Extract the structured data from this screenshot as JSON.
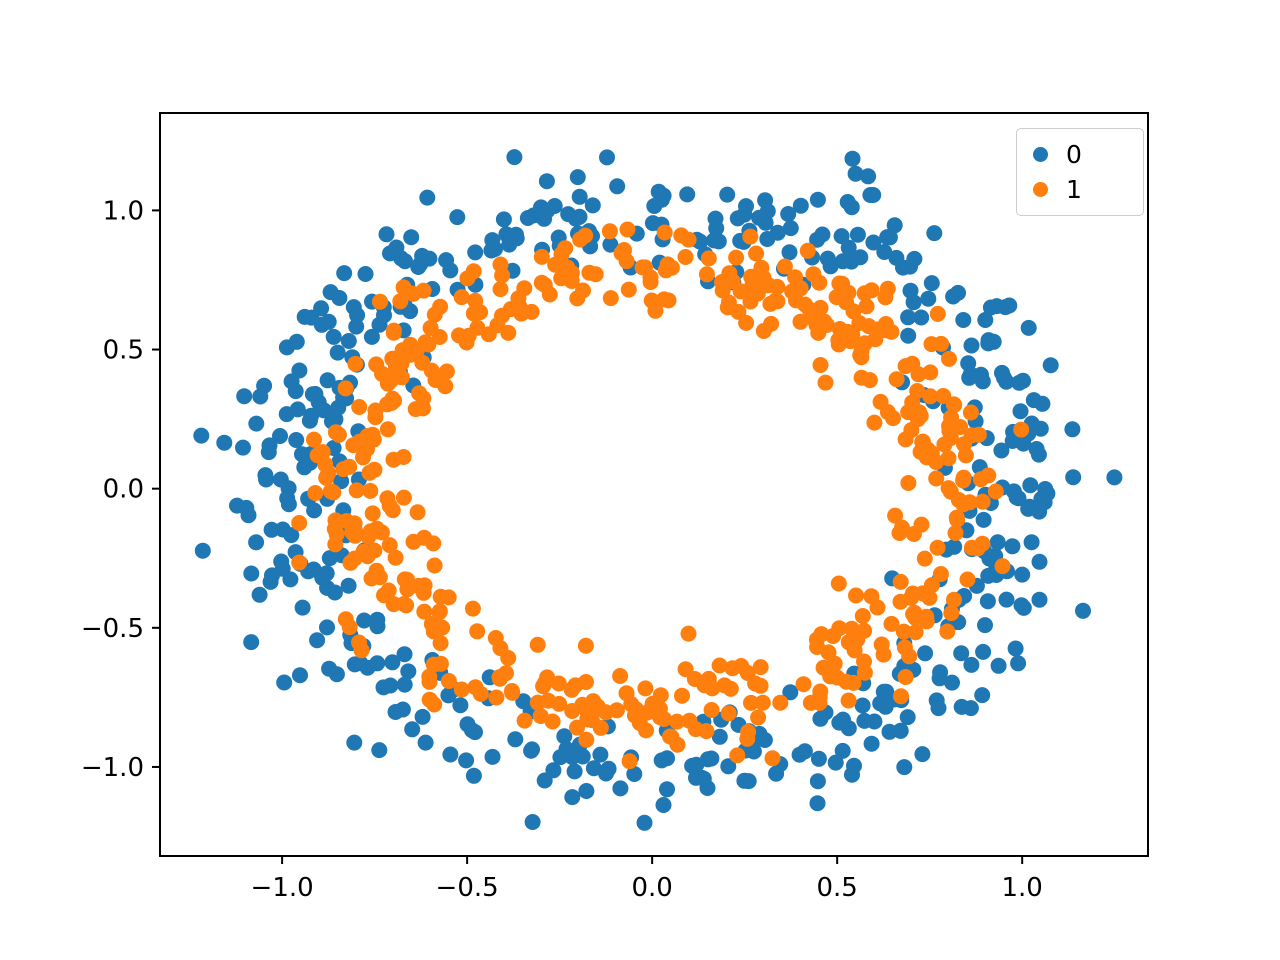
{
  "figure": {
    "background": "#ffffff"
  },
  "chart_data": {
    "type": "scatter",
    "title": "",
    "xlabel": "",
    "ylabel": "",
    "xlim": [
      -1.33,
      1.34
    ],
    "ylim": [
      -1.32,
      1.35
    ],
    "xticks": [
      -1.0,
      -0.5,
      0.0,
      0.5,
      1.0
    ],
    "yticks": [
      -1.0,
      -0.5,
      0.0,
      0.5,
      1.0
    ],
    "grid": false,
    "marker_radius_px": 8,
    "legend": {
      "position": "upper right",
      "entries": [
        {
          "label": "0",
          "color": "#1f77b4"
        },
        {
          "label": "1",
          "color": "#ff7f0e"
        }
      ]
    },
    "series": [
      {
        "name": "0",
        "color": "#1f77b4",
        "distribution": "circle",
        "radius": 1.0,
        "noise_std": 0.1,
        "count": 500,
        "seed": 3
      },
      {
        "name": "1",
        "color": "#ff7f0e",
        "distribution": "circle",
        "radius": 0.8,
        "noise_std": 0.08,
        "count": 500,
        "seed": 11
      }
    ]
  }
}
